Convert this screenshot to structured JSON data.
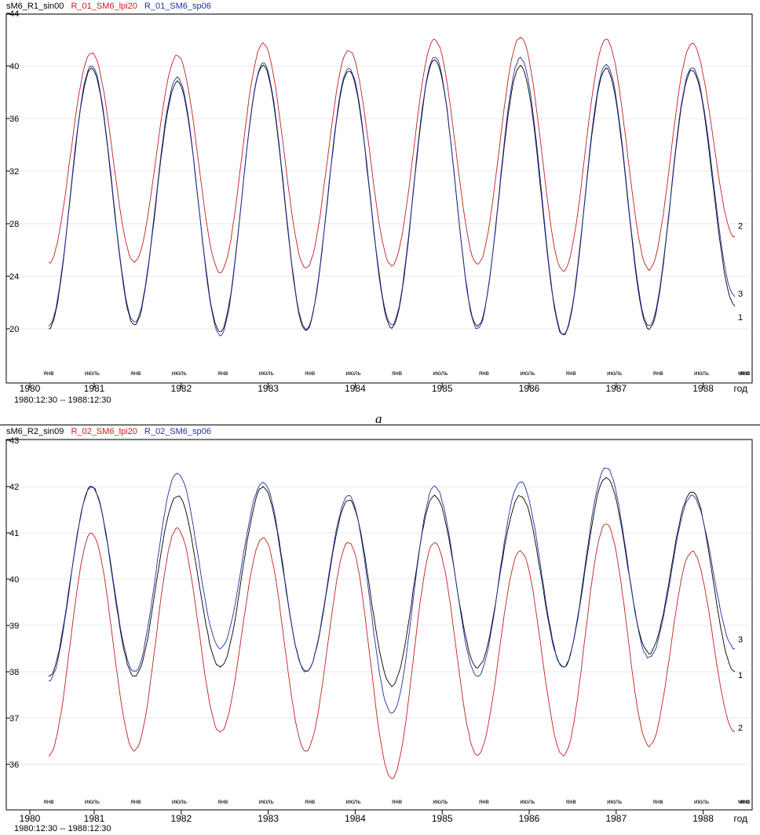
{
  "caption_a": "a",
  "chart_data": [
    {
      "type": "line",
      "id": "a",
      "title": "",
      "legend": [
        "sM6_R1_sin00",
        "R_01_SM6_lpi20",
        "R_01_SM6_sp06"
      ],
      "legend_colors": [
        "#000000",
        "#c02020",
        "#2030a0"
      ],
      "y_ticks": [
        "44",
        "40",
        "36",
        "32",
        "28",
        "24",
        "20"
      ],
      "ylim": [
        16,
        44
      ],
      "grid": true,
      "years": [
        "1980",
        "1981",
        "1982",
        "1983",
        "1984",
        "1985",
        "1986",
        "1987",
        "1988"
      ],
      "year_axis_label": "год",
      "month_labels": [
        "янв",
        "июль",
        "янв",
        "июль",
        "янв",
        "июль",
        "янв",
        "июль",
        "янв",
        "июль",
        "янв",
        "июль",
        "янв",
        "июль",
        "янв",
        "июль",
        "янв",
        "июль"
      ],
      "month_axis_label": "мес",
      "range_text": "1980:12:30 -- 1988:12:30",
      "start_month": 0,
      "curve_labels": [
        {
          "text": "1",
          "series": 0
        },
        {
          "text": "2",
          "series": 1
        },
        {
          "text": "3",
          "series": 2
        }
      ],
      "series": [
        {
          "color": "#000000",
          "maxima": [
            39.8,
            38.8,
            40.0,
            39.6,
            40.5,
            40.0,
            39.8,
            39.7
          ],
          "minima": [
            20.0,
            20.3,
            19.8,
            19.9,
            20.1,
            20.2,
            19.5,
            20.0,
            21.8
          ]
        },
        {
          "color": "#c02020",
          "maxima": [
            41.0,
            40.8,
            41.7,
            41.2,
            42.0,
            42.2,
            42.0,
            41.7
          ],
          "minima": [
            25.0,
            25.1,
            24.3,
            24.6,
            24.8,
            24.9,
            24.4,
            24.5,
            27.0
          ]
        },
        {
          "color": "#2030a0",
          "maxima": [
            40.0,
            39.1,
            40.2,
            39.8,
            40.7,
            40.6,
            40.1,
            39.9
          ],
          "minima": [
            20.2,
            20.5,
            19.5,
            20.0,
            20.3,
            20.0,
            19.6,
            20.2,
            22.5
          ]
        }
      ]
    },
    {
      "type": "line",
      "id": "b",
      "title": "",
      "legend": [
        "sM6_R2_sin09",
        "R_02_SM6_lpi20",
        "R_02_SM6_sp06"
      ],
      "legend_colors": [
        "#000000",
        "#c02020",
        "#2030a0"
      ],
      "y_ticks": [
        "43",
        "42",
        "41",
        "40",
        "39",
        "38",
        "37",
        "36"
      ],
      "ylim": [
        35.2,
        43
      ],
      "grid": true,
      "years": [
        "1980",
        "1981",
        "1982",
        "1983",
        "1984",
        "1985",
        "1986",
        "1987",
        "1988"
      ],
      "year_axis_label": "год",
      "month_labels": [
        "янв",
        "июль",
        "янв",
        "июль",
        "янв",
        "июль",
        "янв",
        "июль",
        "янв",
        "июль",
        "янв",
        "июль",
        "янв",
        "июль",
        "янв",
        "июль",
        "янв",
        "июль"
      ],
      "month_axis_label": "мес",
      "range_text": "1980:12:30 -- 1988:12:30",
      "start_month": 0,
      "curve_labels": [
        {
          "text": "1",
          "series": 0
        },
        {
          "text": "2",
          "series": 1
        },
        {
          "text": "3",
          "series": 2
        }
      ],
      "series": [
        {
          "color": "#000000",
          "maxima": [
            42.0,
            41.8,
            42.0,
            41.7,
            41.8,
            41.8,
            42.2,
            41.9
          ],
          "minima": [
            37.9,
            37.9,
            38.1,
            38.0,
            37.7,
            38.1,
            38.1,
            38.4,
            38.0
          ]
        },
        {
          "color": "#c02020",
          "maxima": [
            41.0,
            41.1,
            40.9,
            40.8,
            40.8,
            40.6,
            41.2,
            40.6
          ],
          "minima": [
            36.2,
            36.3,
            36.7,
            36.3,
            35.7,
            36.2,
            36.2,
            36.4,
            36.7
          ]
        },
        {
          "color": "#2030a0",
          "maxima": [
            42.0,
            42.3,
            42.1,
            41.8,
            42.0,
            42.1,
            42.4,
            41.8
          ],
          "minima": [
            37.8,
            38.0,
            38.5,
            38.0,
            37.1,
            37.9,
            38.1,
            38.3,
            38.5
          ]
        }
      ]
    }
  ]
}
